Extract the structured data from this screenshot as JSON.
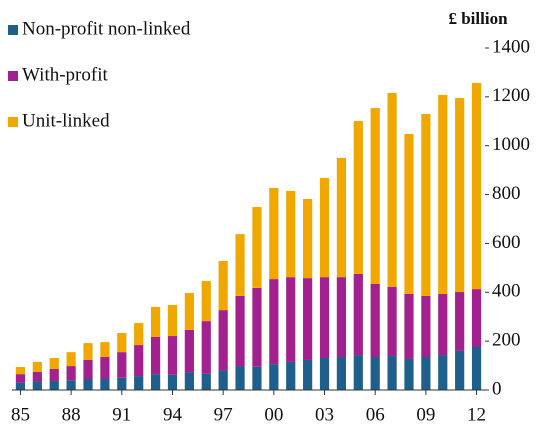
{
  "chart_data": {
    "type": "stacked_bar",
    "y_axis_label": "£ billion",
    "categories": [
      "85",
      null,
      null,
      "88",
      null,
      null,
      "91",
      null,
      null,
      "94",
      null,
      null,
      "97",
      null,
      null,
      "00",
      null,
      null,
      "03",
      null,
      null,
      "06",
      null,
      null,
      "09",
      null,
      null,
      "12"
    ],
    "series": [
      {
        "name": "Non-profit non-linked",
        "color": "#1f5f8b",
        "values": [
          30,
          35,
          37,
          40,
          45,
          45,
          50,
          57,
          65,
          62,
          72,
          66,
          80,
          98,
          95,
          106,
          115,
          123,
          131,
          135,
          143,
          135,
          139,
          127,
          135,
          143,
          160,
          176
        ]
      },
      {
        "name": "With-profit",
        "color": "#a3218e",
        "values": [
          35,
          39,
          49,
          58,
          78,
          90,
          105,
          127,
          152,
          159,
          174,
          216,
          247,
          287,
          323,
          348,
          347,
          335,
          331,
          327,
          332,
          299,
          283,
          266,
          250,
          250,
          241,
          237
        ]
      },
      {
        "name": "Unit-linked",
        "color": "#f0a800",
        "values": [
          29,
          41,
          45,
          57,
          69,
          61,
          78,
          90,
          123,
          127,
          151,
          164,
          201,
          253,
          331,
          373,
          353,
          324,
          406,
          488,
          626,
          720,
          794,
          655,
          745,
          815,
          794,
          844
        ]
      }
    ],
    "ylim": [
      0,
      1400
    ],
    "yticks": [
      0,
      200,
      400,
      600,
      800,
      1000,
      1200,
      1400
    ],
    "legend": "top-left"
  }
}
